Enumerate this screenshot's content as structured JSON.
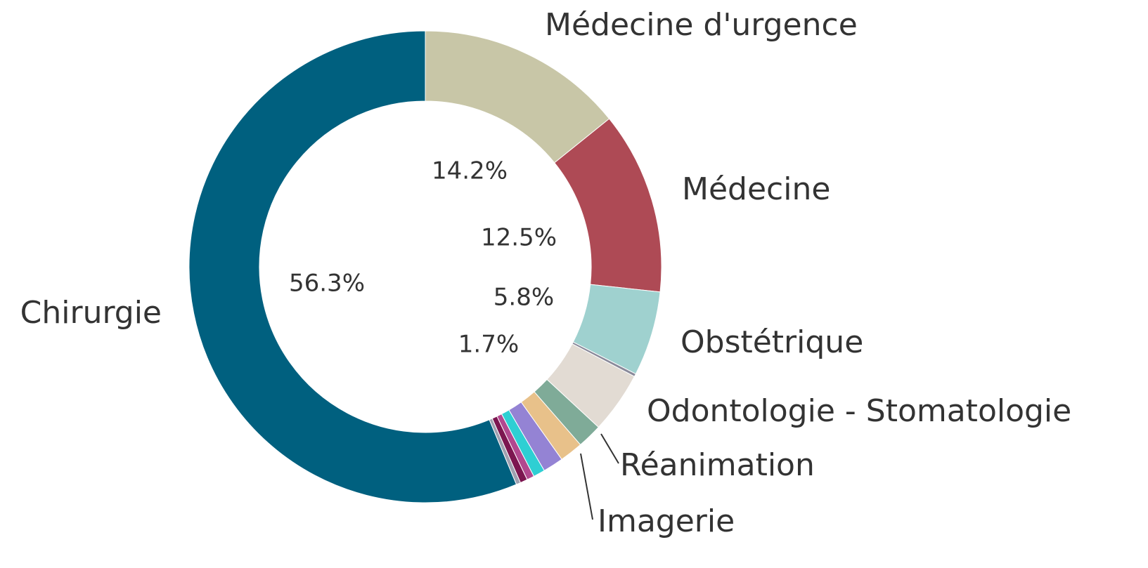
{
  "chart_data": {
    "type": "donut",
    "categories": [
      "Médecine d'urgence",
      "Médecine",
      "Obstétrique",
      null,
      "Odontologie - Stomatologie",
      "Réanimation",
      "Imagerie",
      null,
      null,
      null,
      null,
      null,
      "Chirurgie"
    ],
    "values": [
      14.2,
      12.5,
      5.8,
      0.2,
      4.2,
      1.7,
      1.6,
      1.4,
      0.8,
      0.5,
      0.5,
      0.3,
      56.3
    ],
    "value_labels": [
      "14.2%",
      "12.5%",
      "5.8%",
      null,
      null,
      "1.7%",
      null,
      null,
      null,
      null,
      null,
      null,
      "56.3%"
    ],
    "colors": [
      "#c8c6a7",
      "#ae4a55",
      "#9fd1cf",
      "#8a8a9a",
      "#e2dbd3",
      "#7fab98",
      "#e8c18a",
      "#9483d4",
      "#2ecfd3",
      "#b2488f",
      "#7c1650",
      "#a0a0b0",
      "#00607f"
    ]
  }
}
